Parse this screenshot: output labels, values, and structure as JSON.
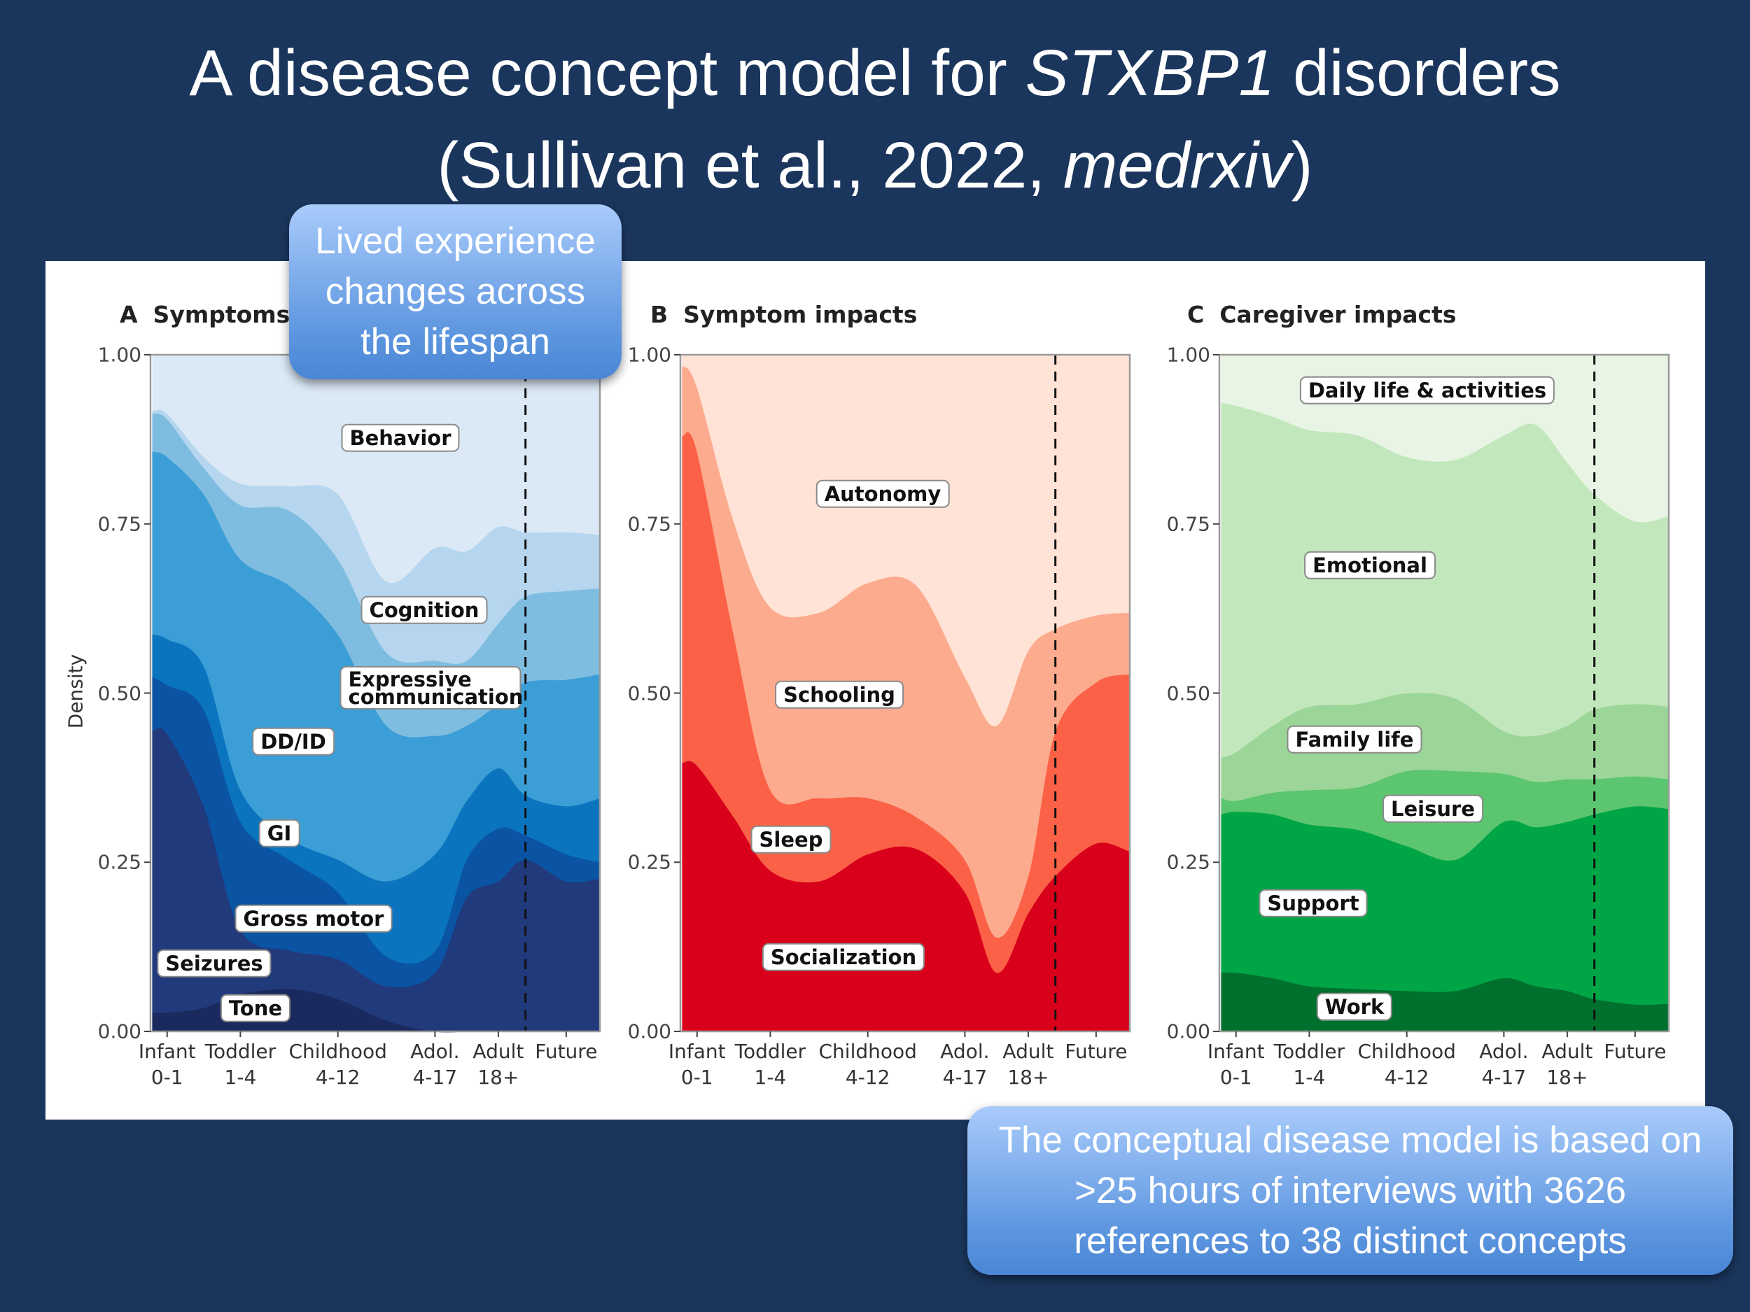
{
  "title": {
    "line1_pre": "A disease concept model for ",
    "line1_italic": "STXBP1",
    "line1_post": " disorders",
    "line2_pre": "(Sullivan et al., 2022, ",
    "line2_italic": "medrxiv",
    "line2_post": ")"
  },
  "callouts": [
    {
      "lines": [
        "Lived experience",
        "changes across",
        "the lifespan"
      ]
    },
    {
      "lines": [
        "The conceptual disease model is based on",
        ">25 hours of interviews with 3626",
        "references to 38 distinct concepts"
      ]
    }
  ],
  "colors": {
    "background": "#1b365d",
    "callout_top": "#a9cbfb",
    "callout_bottom": "#4a86d4"
  },
  "chart_data": [
    {
      "type": "area",
      "stacked": true,
      "panel": "A",
      "title": "Symptoms",
      "ylabel": "Density",
      "ylim": [
        0,
        1
      ],
      "yticks": [
        "0.00",
        "0.25",
        "0.50",
        "0.75",
        "1.00"
      ],
      "categories": [
        {
          "label": "Infant",
          "range": "0-1"
        },
        {
          "label": "Toddler",
          "range": "1-4"
        },
        {
          "label": "Childhood",
          "range": "4-12"
        },
        {
          "label": "Adol.",
          "range": "4-17"
        },
        {
          "label": "Adult",
          "range": "18+"
        },
        {
          "label": "Future",
          "range": ""
        }
      ],
      "divider_x": 4.4,
      "x": [
        -0.2,
        0,
        0.5,
        1,
        1.5,
        2,
        2.5,
        3,
        3.5,
        4,
        4.4,
        5,
        5.5
      ],
      "series": [
        {
          "name": "Tone",
          "color": "#1b2a5e",
          "values": [
            0.028,
            0.028,
            0.035,
            0.055,
            0.063,
            0.048,
            0.016,
            0,
            0,
            0,
            0,
            0,
            0
          ]
        },
        {
          "name": "Seizures",
          "color": "#213a7c",
          "values": [
            0.416,
            0.412,
            0.298,
            0.095,
            0.057,
            0.059,
            0.051,
            0.087,
            0.198,
            0.222,
            0.254,
            0.222,
            0.226
          ]
        },
        {
          "name": "Gross motor",
          "color": "#0a54a3",
          "values": [
            0.08,
            0.072,
            0.143,
            0.16,
            0.134,
            0.099,
            0.044,
            0.032,
            0.056,
            0.078,
            0.036,
            0.04,
            0.024
          ]
        },
        {
          "name": "GI",
          "color": "#0b74bf",
          "values": [
            0.063,
            0.068,
            0.064,
            0.047,
            0.032,
            0.048,
            0.111,
            0.143,
            0.087,
            0.089,
            0.059,
            0.071,
            0.095
          ]
        },
        {
          "name": "DD/ID",
          "color": "#3c9ed6",
          "values": [
            0.27,
            0.269,
            0.254,
            0.341,
            0.373,
            0.333,
            0.23,
            0.175,
            0.111,
            0.095,
            0.167,
            0.187,
            0.183
          ]
        },
        {
          "name": "Expressive communication",
          "color": "#7fbde0",
          "values": [
            0.056,
            0.056,
            0.039,
            0.08,
            0.111,
            0.111,
            0.108,
            0.111,
            0.096,
            0.119,
            0.127,
            0.131,
            0.127
          ]
        },
        {
          "name": "Cognition",
          "color": "#b5d6ee",
          "values": [
            0.004,
            0.008,
            0.016,
            0.032,
            0.036,
            0.096,
            0.105,
            0.167,
            0.162,
            0.143,
            0.095,
            0.087,
            0.079
          ]
        },
        {
          "name": "Behavior",
          "color": "#dbe9f6",
          "values": [
            0.083,
            0.087,
            0.151,
            0.19,
            0.194,
            0.206,
            0.335,
            0.285,
            0.29,
            0.254,
            0.262,
            0.262,
            0.266
          ]
        }
      ]
    },
    {
      "type": "area",
      "stacked": true,
      "panel": "B",
      "title": "Symptom impacts",
      "ylabel": "",
      "ylim": [
        0,
        1
      ],
      "yticks": [
        "0.00",
        "0.25",
        "0.50",
        "0.75",
        "1.00"
      ],
      "categories": [
        {
          "label": "Infant",
          "range": "0-1"
        },
        {
          "label": "Toddler",
          "range": "1-4"
        },
        {
          "label": "Childhood",
          "range": "4-12"
        },
        {
          "label": "Adol.",
          "range": "4-17"
        },
        {
          "label": "Adult",
          "range": "18+"
        },
        {
          "label": "Future",
          "range": ""
        }
      ],
      "divider_x": 4.4,
      "x": [
        -0.2,
        0,
        0.5,
        1,
        1.5,
        2,
        2.5,
        3,
        3.5,
        4,
        4.4,
        5,
        5.5
      ],
      "series": [
        {
          "name": "Socialization",
          "color": "#d9001b",
          "values": [
            0.397,
            0.393,
            0.317,
            0.238,
            0.222,
            0.262,
            0.27,
            0.206,
            0.087,
            0.175,
            0.23,
            0.278,
            0.266
          ]
        },
        {
          "name": "Sleep",
          "color": "#fb6146",
          "values": [
            0.484,
            0.464,
            0.27,
            0.119,
            0.123,
            0.083,
            0.047,
            0.048,
            0.052,
            0.055,
            0.214,
            0.238,
            0.262
          ]
        },
        {
          "name": "Schooling",
          "color": "#fcab8e",
          "values": [
            0.103,
            0.095,
            0.167,
            0.27,
            0.274,
            0.318,
            0.342,
            0.27,
            0.313,
            0.333,
            0.151,
            0.099,
            0.091
          ]
        },
        {
          "name": "Autonomy",
          "color": "#fee3d6",
          "values": [
            0.016,
            0.048,
            0.246,
            0.373,
            0.381,
            0.337,
            0.341,
            0.476,
            0.548,
            0.437,
            0.405,
            0.385,
            0.381
          ]
        }
      ]
    },
    {
      "type": "area",
      "stacked": true,
      "panel": "C",
      "title": "Caregiver impacts",
      "ylabel": "",
      "ylim": [
        0,
        1
      ],
      "yticks": [
        "0.00",
        "0.25",
        "0.50",
        "0.75",
        "1.00"
      ],
      "categories": [
        {
          "label": "Infant",
          "range": "0-1"
        },
        {
          "label": "Toddler",
          "range": "1-4"
        },
        {
          "label": "Childhood",
          "range": "4-12"
        },
        {
          "label": "Adol.",
          "range": "4-17"
        },
        {
          "label": "Adult",
          "range": "18+"
        },
        {
          "label": "Future",
          "range": ""
        }
      ],
      "divider_x": 4.4,
      "x": [
        -0.2,
        0,
        0.5,
        1,
        1.5,
        2,
        2.5,
        3,
        3.5,
        4,
        4.4,
        5,
        5.5
      ],
      "series": [
        {
          "name": "Work",
          "color": "#00702e",
          "values": [
            0.087,
            0.087,
            0.079,
            0.067,
            0.063,
            0.06,
            0.06,
            0.079,
            0.067,
            0.06,
            0.048,
            0.04,
            0.041
          ]
        },
        {
          "name": "Support",
          "color": "#00a546",
          "values": [
            0.234,
            0.238,
            0.242,
            0.239,
            0.235,
            0.214,
            0.194,
            0.231,
            0.235,
            0.25,
            0.273,
            0.293,
            0.288
          ]
        },
        {
          "name": "Leisure",
          "color": "#5cc56f",
          "values": [
            0.024,
            0.016,
            0.032,
            0.051,
            0.063,
            0.111,
            0.131,
            0.071,
            0.067,
            0.063,
            0.052,
            0.044,
            0.044
          ]
        },
        {
          "name": "Family life",
          "color": "#9bd597",
          "values": [
            0.06,
            0.072,
            0.099,
            0.123,
            0.123,
            0.115,
            0.107,
            0.063,
            0.068,
            0.079,
            0.103,
            0.107,
            0.107
          ]
        },
        {
          "name": "Emotional",
          "color": "#c3e7bd",
          "values": [
            0.524,
            0.512,
            0.457,
            0.409,
            0.397,
            0.349,
            0.353,
            0.437,
            0.46,
            0.389,
            0.318,
            0.27,
            0.282
          ]
        },
        {
          "name": "Daily life & activities",
          "color": "#e8f5e4",
          "values": [
            0.071,
            0.075,
            0.091,
            0.111,
            0.119,
            0.151,
            0.155,
            0.119,
            0.103,
            0.159,
            0.206,
            0.246,
            0.238
          ]
        }
      ]
    }
  ]
}
